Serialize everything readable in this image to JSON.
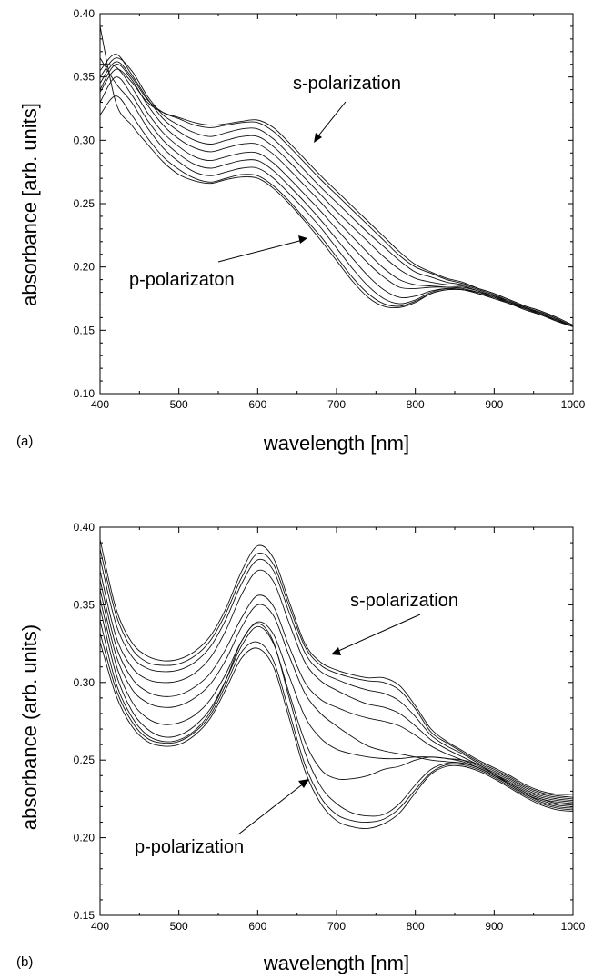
{
  "chart_data": [
    {
      "type": "line",
      "panel_label": "(a)",
      "xlabel": "wavelength [nm]",
      "ylabel": "absorbance [arb. units]",
      "xlim": [
        400,
        1000
      ],
      "ylim": [
        0.1,
        0.4
      ],
      "xticks": [
        400,
        500,
        600,
        700,
        800,
        900,
        1000
      ],
      "yticks": [
        "0.10",
        "0.15",
        "0.20",
        "0.25",
        "0.30",
        "0.35",
        "0.40"
      ],
      "annotations": [
        {
          "text": "s-polarization",
          "points_to": [
            620,
            0.315
          ]
        },
        {
          "text": "p-polarizaton",
          "points_to": [
            650,
            0.265
          ]
        }
      ],
      "x": [
        400,
        420,
        440,
        460,
        480,
        500,
        520,
        540,
        560,
        580,
        600,
        620,
        640,
        660,
        680,
        700,
        720,
        740,
        760,
        780,
        800,
        820,
        840,
        860,
        880,
        900,
        920,
        940,
        960,
        980,
        1000
      ],
      "series": [
        {
          "values": [
            0.338,
            0.356,
            0.346,
            0.33,
            0.322,
            0.318,
            0.314,
            0.312,
            0.313,
            0.315,
            0.316,
            0.31,
            0.298,
            0.285,
            0.272,
            0.26,
            0.248,
            0.236,
            0.224,
            0.212,
            0.202,
            0.196,
            0.191,
            0.188,
            0.183,
            0.179,
            0.174,
            0.169,
            0.165,
            0.16,
            0.154
          ]
        },
        {
          "values": [
            0.345,
            0.362,
            0.35,
            0.332,
            0.322,
            0.317,
            0.312,
            0.31,
            0.312,
            0.314,
            0.314,
            0.307,
            0.295,
            0.282,
            0.269,
            0.257,
            0.245,
            0.233,
            0.221,
            0.209,
            0.2,
            0.195,
            0.19,
            0.187,
            0.183,
            0.179,
            0.174,
            0.169,
            0.165,
            0.16,
            0.154
          ]
        },
        {
          "values": [
            0.35,
            0.365,
            0.355,
            0.335,
            0.32,
            0.312,
            0.306,
            0.303,
            0.306,
            0.309,
            0.309,
            0.301,
            0.289,
            0.276,
            0.263,
            0.251,
            0.239,
            0.227,
            0.216,
            0.205,
            0.196,
            0.192,
            0.188,
            0.186,
            0.182,
            0.178,
            0.173,
            0.168,
            0.164,
            0.159,
            0.153
          ]
        },
        {
          "values": [
            0.355,
            0.368,
            0.352,
            0.333,
            0.317,
            0.307,
            0.3,
            0.297,
            0.3,
            0.303,
            0.303,
            0.295,
            0.283,
            0.27,
            0.257,
            0.244,
            0.232,
            0.22,
            0.208,
            0.198,
            0.191,
            0.188,
            0.186,
            0.185,
            0.181,
            0.177,
            0.173,
            0.168,
            0.164,
            0.159,
            0.153
          ]
        },
        {
          "values": [
            0.34,
            0.36,
            0.348,
            0.328,
            0.312,
            0.301,
            0.294,
            0.291,
            0.294,
            0.297,
            0.297,
            0.289,
            0.277,
            0.264,
            0.251,
            0.237,
            0.224,
            0.211,
            0.199,
            0.19,
            0.186,
            0.185,
            0.184,
            0.184,
            0.181,
            0.177,
            0.172,
            0.168,
            0.163,
            0.158,
            0.153
          ]
        },
        {
          "values": [
            0.36,
            0.358,
            0.342,
            0.322,
            0.306,
            0.295,
            0.287,
            0.284,
            0.287,
            0.29,
            0.29,
            0.282,
            0.27,
            0.257,
            0.244,
            0.23,
            0.216,
            0.203,
            0.192,
            0.184,
            0.183,
            0.184,
            0.184,
            0.183,
            0.18,
            0.177,
            0.172,
            0.167,
            0.163,
            0.158,
            0.153
          ]
        },
        {
          "values": [
            0.33,
            0.35,
            0.336,
            0.316,
            0.3,
            0.289,
            0.281,
            0.278,
            0.281,
            0.284,
            0.284,
            0.276,
            0.264,
            0.251,
            0.237,
            0.222,
            0.207,
            0.193,
            0.182,
            0.176,
            0.177,
            0.181,
            0.183,
            0.182,
            0.18,
            0.176,
            0.172,
            0.167,
            0.163,
            0.158,
            0.153
          ]
        },
        {
          "values": [
            0.365,
            0.345,
            0.33,
            0.31,
            0.294,
            0.283,
            0.275,
            0.272,
            0.275,
            0.278,
            0.278,
            0.27,
            0.258,
            0.245,
            0.231,
            0.215,
            0.199,
            0.185,
            0.175,
            0.171,
            0.174,
            0.18,
            0.183,
            0.182,
            0.179,
            0.176,
            0.171,
            0.167,
            0.162,
            0.158,
            0.153
          ]
        },
        {
          "values": [
            0.32,
            0.335,
            0.32,
            0.302,
            0.287,
            0.277,
            0.27,
            0.267,
            0.27,
            0.273,
            0.272,
            0.264,
            0.252,
            0.238,
            0.224,
            0.208,
            0.192,
            0.179,
            0.171,
            0.169,
            0.173,
            0.179,
            0.182,
            0.182,
            0.179,
            0.175,
            0.171,
            0.166,
            0.162,
            0.157,
            0.153
          ]
        },
        {
          "values": [
            0.39,
            0.33,
            0.312,
            0.297,
            0.283,
            0.273,
            0.268,
            0.266,
            0.269,
            0.271,
            0.27,
            0.262,
            0.25,
            0.236,
            0.221,
            0.205,
            0.189,
            0.176,
            0.169,
            0.168,
            0.172,
            0.179,
            0.182,
            0.182,
            0.179,
            0.175,
            0.171,
            0.166,
            0.162,
            0.157,
            0.153
          ]
        }
      ]
    },
    {
      "type": "line",
      "panel_label": "(b)",
      "xlabel": "wavelength [nm]",
      "ylabel": "absorbance (arb. units)",
      "xlim": [
        400,
        1000
      ],
      "ylim": [
        0.15,
        0.4
      ],
      "xticks": [
        400,
        500,
        600,
        700,
        800,
        900,
        1000
      ],
      "yticks": [
        "0.15",
        "0.20",
        "0.25",
        "0.30",
        "0.35",
        "0.40"
      ],
      "annotations": [
        {
          "text": "s-polarization",
          "points_to": [
            660,
            0.305
          ]
        },
        {
          "text": "p-polarization",
          "points_to": [
            690,
            0.24
          ]
        }
      ],
      "x": [
        400,
        420,
        440,
        460,
        480,
        500,
        520,
        540,
        560,
        580,
        600,
        620,
        640,
        660,
        680,
        700,
        720,
        740,
        760,
        780,
        800,
        820,
        840,
        860,
        880,
        900,
        920,
        940,
        960,
        980,
        1000
      ],
      "series": [
        {
          "values": [
            0.392,
            0.348,
            0.326,
            0.317,
            0.314,
            0.315,
            0.32,
            0.33,
            0.348,
            0.372,
            0.388,
            0.38,
            0.352,
            0.325,
            0.313,
            0.308,
            0.305,
            0.303,
            0.303,
            0.298,
            0.285,
            0.27,
            0.262,
            0.256,
            0.25,
            0.245,
            0.24,
            0.234,
            0.23,
            0.228,
            0.228
          ]
        },
        {
          "values": [
            0.386,
            0.344,
            0.322,
            0.313,
            0.311,
            0.312,
            0.317,
            0.327,
            0.345,
            0.368,
            0.383,
            0.376,
            0.349,
            0.323,
            0.311,
            0.306,
            0.303,
            0.301,
            0.3,
            0.295,
            0.283,
            0.268,
            0.261,
            0.255,
            0.249,
            0.244,
            0.239,
            0.233,
            0.229,
            0.227,
            0.226
          ]
        },
        {
          "values": [
            0.38,
            0.338,
            0.317,
            0.309,
            0.307,
            0.308,
            0.313,
            0.323,
            0.341,
            0.364,
            0.379,
            0.372,
            0.345,
            0.319,
            0.307,
            0.302,
            0.298,
            0.295,
            0.293,
            0.288,
            0.278,
            0.266,
            0.259,
            0.254,
            0.248,
            0.243,
            0.238,
            0.232,
            0.228,
            0.226,
            0.225
          ]
        },
        {
          "values": [
            0.372,
            0.33,
            0.31,
            0.302,
            0.3,
            0.301,
            0.306,
            0.316,
            0.334,
            0.357,
            0.372,
            0.365,
            0.338,
            0.313,
            0.301,
            0.295,
            0.29,
            0.286,
            0.284,
            0.28,
            0.272,
            0.263,
            0.257,
            0.252,
            0.247,
            0.242,
            0.237,
            0.231,
            0.227,
            0.225,
            0.224
          ]
        },
        {
          "values": [
            0.366,
            0.324,
            0.303,
            0.294,
            0.291,
            0.292,
            0.297,
            0.306,
            0.322,
            0.342,
            0.356,
            0.349,
            0.323,
            0.3,
            0.289,
            0.284,
            0.28,
            0.277,
            0.275,
            0.272,
            0.266,
            0.259,
            0.254,
            0.25,
            0.246,
            0.241,
            0.236,
            0.23,
            0.226,
            0.224,
            0.223
          ]
        },
        {
          "values": [
            0.36,
            0.318,
            0.296,
            0.287,
            0.284,
            0.285,
            0.29,
            0.299,
            0.315,
            0.336,
            0.35,
            0.343,
            0.317,
            0.293,
            0.28,
            0.272,
            0.265,
            0.259,
            0.256,
            0.254,
            0.252,
            0.25,
            0.249,
            0.248,
            0.245,
            0.24,
            0.235,
            0.229,
            0.225,
            0.223,
            0.222
          ]
        },
        {
          "values": [
            0.354,
            0.312,
            0.288,
            0.277,
            0.273,
            0.274,
            0.279,
            0.289,
            0.306,
            0.327,
            0.339,
            0.331,
            0.304,
            0.278,
            0.264,
            0.257,
            0.254,
            0.252,
            0.251,
            0.251,
            0.252,
            0.252,
            0.251,
            0.25,
            0.247,
            0.241,
            0.235,
            0.229,
            0.225,
            0.222,
            0.221
          ]
        },
        {
          "values": [
            0.348,
            0.306,
            0.282,
            0.27,
            0.265,
            0.266,
            0.272,
            0.283,
            0.302,
            0.324,
            0.336,
            0.325,
            0.293,
            0.262,
            0.244,
            0.238,
            0.238,
            0.24,
            0.244,
            0.246,
            0.25,
            0.252,
            0.251,
            0.249,
            0.245,
            0.24,
            0.234,
            0.228,
            0.224,
            0.221,
            0.22
          ]
        },
        {
          "values": [
            0.34,
            0.3,
            0.278,
            0.266,
            0.262,
            0.263,
            0.269,
            0.281,
            0.302,
            0.327,
            0.338,
            0.326,
            0.29,
            0.255,
            0.233,
            0.222,
            0.216,
            0.214,
            0.215,
            0.222,
            0.234,
            0.244,
            0.248,
            0.248,
            0.245,
            0.24,
            0.234,
            0.228,
            0.223,
            0.22,
            0.219
          ]
        },
        {
          "values": [
            0.332,
            0.296,
            0.275,
            0.264,
            0.261,
            0.262,
            0.268,
            0.279,
            0.299,
            0.32,
            0.326,
            0.314,
            0.281,
            0.247,
            0.226,
            0.215,
            0.211,
            0.21,
            0.212,
            0.219,
            0.231,
            0.242,
            0.247,
            0.247,
            0.244,
            0.239,
            0.233,
            0.227,
            0.222,
            0.219,
            0.218
          ]
        },
        {
          "values": [
            0.326,
            0.292,
            0.272,
            0.262,
            0.259,
            0.26,
            0.266,
            0.277,
            0.296,
            0.316,
            0.322,
            0.31,
            0.277,
            0.243,
            0.222,
            0.211,
            0.207,
            0.206,
            0.209,
            0.216,
            0.229,
            0.241,
            0.246,
            0.246,
            0.243,
            0.238,
            0.232,
            0.226,
            0.221,
            0.218,
            0.217
          ]
        }
      ]
    }
  ]
}
